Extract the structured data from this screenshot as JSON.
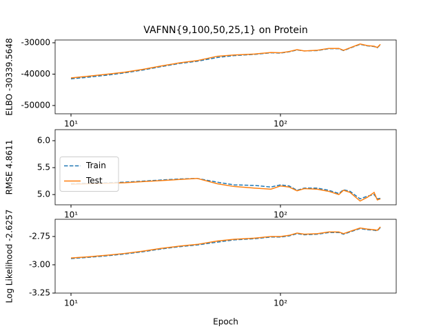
{
  "chart_data": [
    {
      "type": "line",
      "title": "VAFNN{9,100,50,25,1} on Protein",
      "ylabel": "ELBO -30339.5648",
      "x": [
        10,
        12,
        15,
        18,
        22,
        27,
        33,
        40,
        50,
        60,
        75,
        90,
        100,
        110,
        120,
        130,
        150,
        170,
        190,
        200,
        215,
        240,
        260,
        280,
        290,
        300
      ],
      "series": [
        {
          "color": "#1f77b4",
          "linestyle": "dashed",
          "values": [
            -41500,
            -41000,
            -40300,
            -39600,
            -38700,
            -37600,
            -36600,
            -35900,
            -34700,
            -34100,
            -33700,
            -33200,
            -33300,
            -32900,
            -32300,
            -32600,
            -32500,
            -31900,
            -31900,
            -32500,
            -31700,
            -30500,
            -31000,
            -31200,
            -31600,
            -30600
          ]
        },
        {
          "color": "#ff7f0e",
          "linestyle": "solid",
          "values": [
            -41200,
            -40700,
            -40000,
            -39400,
            -38500,
            -37400,
            -36400,
            -35700,
            -34300,
            -33900,
            -33600,
            -33100,
            -33200,
            -32800,
            -32200,
            -32600,
            -32400,
            -31800,
            -31800,
            -32400,
            -31600,
            -30400,
            -30900,
            -31100,
            -31500,
            -30500
          ]
        }
      ],
      "xscale": "log",
      "xlim": [
        8.4,
        357
      ],
      "xticks": [
        {
          "value": 10,
          "label": "10¹"
        },
        {
          "value": 100,
          "label": "10²"
        }
      ],
      "ylim": [
        -52640,
        -29120
      ],
      "yticks": [
        -50000,
        -40000,
        -30000
      ]
    },
    {
      "type": "line",
      "ylabel": "RMSE 4.8611",
      "x": [
        10,
        12,
        15,
        18,
        22,
        27,
        33,
        40,
        50,
        60,
        75,
        90,
        100,
        110,
        120,
        130,
        150,
        170,
        190,
        200,
        215,
        240,
        260,
        280,
        290,
        300
      ],
      "series": [
        {
          "name": "Train",
          "color": "#1f77b4",
          "linestyle": "dashed",
          "values": [
            5.2,
            5.21,
            5.22,
            5.23,
            5.25,
            5.27,
            5.29,
            5.3,
            5.23,
            5.18,
            5.17,
            5.14,
            5.18,
            5.16,
            5.08,
            5.12,
            5.12,
            5.08,
            5.02,
            5.09,
            5.06,
            4.92,
            4.97,
            5.0,
            4.92,
            4.93
          ]
        },
        {
          "name": "Test",
          "color": "#ff7f0e",
          "linestyle": "solid",
          "values": [
            5.19,
            5.2,
            5.21,
            5.22,
            5.24,
            5.26,
            5.28,
            5.3,
            5.2,
            5.15,
            5.12,
            5.1,
            5.16,
            5.14,
            5.07,
            5.11,
            5.1,
            5.06,
            5.0,
            5.08,
            5.04,
            4.88,
            4.95,
            5.04,
            4.9,
            4.92
          ]
        }
      ],
      "legend": "center left",
      "xscale": "log",
      "xlim": [
        8.4,
        357
      ],
      "xticks": [
        {
          "value": 10,
          "label": "10¹"
        },
        {
          "value": 100,
          "label": "10²"
        }
      ],
      "ylim": [
        4.81,
        6.205
      ],
      "yticks": [
        {
          "value": 5,
          "label": "5.0"
        },
        5.5,
        {
          "value": 6,
          "label": "6.0"
        }
      ]
    },
    {
      "type": "line",
      "ylabel": "Log Likelihood -2.6257",
      "xlabel": "Epoch",
      "x": [
        10,
        12,
        15,
        18,
        22,
        27,
        33,
        40,
        50,
        60,
        75,
        90,
        100,
        110,
        120,
        130,
        150,
        170,
        190,
        200,
        215,
        240,
        260,
        280,
        290,
        300
      ],
      "series": [
        {
          "color": "#1f77b4",
          "linestyle": "dashed",
          "values": [
            -2.945,
            -2.935,
            -2.92,
            -2.905,
            -2.885,
            -2.86,
            -2.84,
            -2.825,
            -2.8,
            -2.78,
            -2.77,
            -2.755,
            -2.755,
            -2.745,
            -2.725,
            -2.735,
            -2.73,
            -2.715,
            -2.715,
            -2.73,
            -2.71,
            -2.68,
            -2.69,
            -2.695,
            -2.7,
            -2.67
          ]
        },
        {
          "color": "#ff7f0e",
          "linestyle": "solid",
          "values": [
            -2.94,
            -2.93,
            -2.915,
            -2.9,
            -2.88,
            -2.855,
            -2.835,
            -2.82,
            -2.79,
            -2.775,
            -2.765,
            -2.75,
            -2.75,
            -2.74,
            -2.72,
            -2.73,
            -2.725,
            -2.71,
            -2.71,
            -2.725,
            -2.705,
            -2.675,
            -2.685,
            -2.69,
            -2.695,
            -2.665
          ]
        }
      ],
      "xscale": "log",
      "xlim": [
        8.4,
        357
      ],
      "xticks": [
        {
          "value": 10,
          "label": "10¹"
        },
        {
          "value": 100,
          "label": "10²"
        }
      ],
      "ylim": [
        -3.25,
        -2.598
      ],
      "yticks": [
        -3.25,
        {
          "value": -3,
          "label": "-3.00"
        },
        -2.75
      ]
    }
  ]
}
